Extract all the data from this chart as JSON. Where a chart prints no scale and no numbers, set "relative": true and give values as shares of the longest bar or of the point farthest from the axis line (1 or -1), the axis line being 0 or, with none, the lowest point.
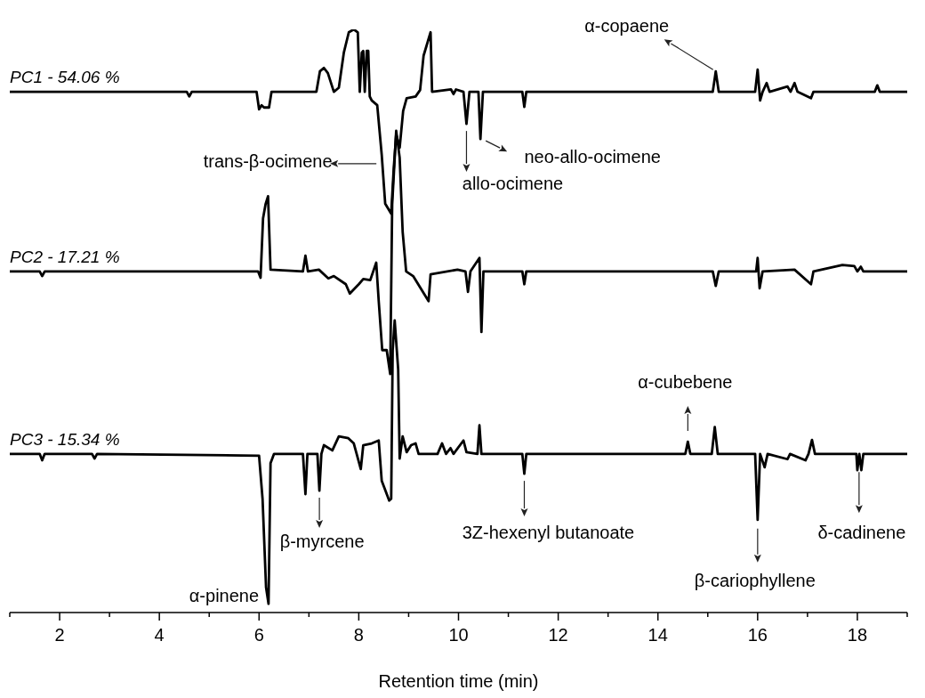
{
  "chart_data": {
    "type": "line",
    "relative": true,
    "xlabel": "Retention time (min)",
    "marker": "none",
    "line_style": "solid",
    "xlim": [
      1,
      19
    ],
    "xticks": [
      {
        "value": 1,
        "label": null
      },
      2,
      {
        "value": 3,
        "label": null
      },
      4,
      {
        "value": 5,
        "label": null
      },
      6,
      {
        "value": 7,
        "label": null
      },
      8,
      {
        "value": 9,
        "label": null
      },
      10,
      {
        "value": 11,
        "label": null
      },
      12,
      {
        "value": 13,
        "label": null
      },
      14,
      {
        "value": 15,
        "label": null
      },
      16,
      {
        "value": 17,
        "label": null
      },
      18,
      {
        "value": 19,
        "label": null
      }
    ],
    "series": [
      {
        "name": "PC1 - 54.06 %",
        "color": "#000000",
        "x": [
          1.0,
          4.55,
          4.6,
          4.65,
          5.95,
          6.0,
          6.05,
          6.1,
          6.2,
          6.25,
          7.15,
          7.22,
          7.3,
          7.38,
          7.5,
          7.6,
          7.7,
          7.8,
          7.9,
          7.98,
          8.02,
          8.06,
          8.09,
          8.12,
          8.16,
          8.19,
          8.22,
          8.26,
          8.37,
          8.46,
          8.53,
          8.65,
          8.7,
          8.75,
          8.82,
          8.89,
          8.96,
          9.14,
          9.23,
          9.3,
          9.44,
          9.47,
          9.85,
          9.9,
          9.95,
          10.1,
          10.16,
          10.22,
          10.4,
          10.44,
          10.49,
          11.28,
          11.32,
          11.36,
          15.1,
          15.16,
          15.22,
          15.95,
          16.0,
          16.05,
          16.1,
          16.18,
          16.24,
          16.6,
          16.66,
          16.74,
          16.8,
          17.07,
          17.12,
          18.35,
          18.4,
          18.45,
          19.0
        ],
        "values": [
          0.893,
          0.893,
          0.885,
          0.893,
          0.893,
          0.863,
          0.87,
          0.866,
          0.866,
          0.893,
          0.893,
          0.928,
          0.934,
          0.925,
          0.893,
          0.9,
          0.96,
          0.995,
          1.0,
          0.995,
          0.893,
          0.96,
          0.963,
          0.893,
          0.963,
          0.963,
          0.885,
          0.878,
          0.87,
          0.785,
          0.701,
          0.684,
          0.76,
          0.82,
          0.797,
          0.86,
          0.882,
          0.885,
          0.896,
          0.955,
          0.995,
          0.893,
          0.897,
          0.889,
          0.897,
          0.893,
          0.838,
          0.893,
          0.893,
          0.812,
          0.893,
          0.893,
          0.867,
          0.893,
          0.893,
          0.928,
          0.893,
          0.893,
          0.931,
          0.878,
          0.893,
          0.908,
          0.893,
          0.902,
          0.893,
          0.908,
          0.893,
          0.882,
          0.893,
          0.893,
          0.904,
          0.893,
          0.893
        ]
      },
      {
        "name": "PC2 - 17.21 %",
        "color": "#000000",
        "x": [
          1.0,
          1.6,
          1.65,
          1.7,
          5.98,
          6.03,
          6.08,
          6.13,
          6.18,
          6.23,
          6.88,
          6.93,
          6.98,
          7.2,
          7.39,
          7.5,
          7.74,
          7.82,
          8.0,
          8.09,
          8.23,
          8.35,
          8.4,
          8.47,
          8.56,
          8.63,
          8.67,
          8.75,
          8.82,
          8.88,
          8.95,
          9.09,
          9.4,
          9.44,
          9.98,
          10.14,
          10.19,
          10.24,
          10.42,
          10.46,
          10.5,
          11.28,
          11.32,
          11.36,
          15.1,
          15.16,
          15.22,
          15.97,
          16.0,
          16.04,
          16.1,
          16.74,
          17.07,
          17.12,
          17.7,
          17.94,
          18.0,
          18.07,
          18.12,
          19.0
        ],
        "values": [
          0.585,
          0.585,
          0.577,
          0.585,
          0.585,
          0.574,
          0.676,
          0.7,
          0.714,
          0.588,
          0.585,
          0.612,
          0.585,
          0.588,
          0.573,
          0.577,
          0.563,
          0.547,
          0.563,
          0.572,
          0.57,
          0.6,
          0.534,
          0.45,
          0.45,
          0.409,
          0.7,
          0.826,
          0.78,
          0.653,
          0.585,
          0.577,
          0.534,
          0.58,
          0.588,
          0.585,
          0.55,
          0.585,
          0.608,
          0.481,
          0.585,
          0.585,
          0.563,
          0.585,
          0.585,
          0.56,
          0.585,
          0.585,
          0.608,
          0.556,
          0.585,
          0.588,
          0.563,
          0.585,
          0.596,
          0.594,
          0.585,
          0.593,
          0.585,
          0.585
        ]
      },
      {
        "name": "PC3 - 15.34 %",
        "color": "#000000",
        "x": [
          1.0,
          1.6,
          1.65,
          1.7,
          2.65,
          2.7,
          2.75,
          6.0,
          6.07,
          6.14,
          6.19,
          6.23,
          6.3,
          6.88,
          6.93,
          6.97,
          7.17,
          7.21,
          7.25,
          7.3,
          7.47,
          7.6,
          7.79,
          7.9,
          8.04,
          8.09,
          8.26,
          8.4,
          8.46,
          8.61,
          8.65,
          8.68,
          8.72,
          8.79,
          8.82,
          8.88,
          8.96,
          9.05,
          9.14,
          9.2,
          9.58,
          9.67,
          9.75,
          9.84,
          9.9,
          10.1,
          10.16,
          10.38,
          10.42,
          10.46,
          11.28,
          11.32,
          11.36,
          14.55,
          14.6,
          14.65,
          15.08,
          15.14,
          15.2,
          15.95,
          16.0,
          16.05,
          16.14,
          16.2,
          16.6,
          16.65,
          16.96,
          17.02,
          17.09,
          17.15,
          17.98,
          18.0,
          18.04,
          18.08,
          18.12,
          19.0
        ],
        "values": [
          0.272,
          0.272,
          0.261,
          0.272,
          0.272,
          0.264,
          0.272,
          0.269,
          0.195,
          0.043,
          0.015,
          0.256,
          0.272,
          0.272,
          0.203,
          0.272,
          0.272,
          0.209,
          0.272,
          0.287,
          0.278,
          0.302,
          0.299,
          0.29,
          0.246,
          0.287,
          0.29,
          0.295,
          0.226,
          0.192,
          0.195,
          0.45,
          0.501,
          0.417,
          0.264,
          0.302,
          0.275,
          0.287,
          0.29,
          0.272,
          0.272,
          0.29,
          0.272,
          0.282,
          0.272,
          0.295,
          0.275,
          0.272,
          0.321,
          0.272,
          0.272,
          0.238,
          0.272,
          0.272,
          0.293,
          0.272,
          0.272,
          0.318,
          0.272,
          0.272,
          0.159,
          0.272,
          0.249,
          0.272,
          0.263,
          0.272,
          0.261,
          0.272,
          0.296,
          0.272,
          0.272,
          0.244,
          0.272,
          0.244,
          0.272,
          0.272
        ]
      }
    ],
    "annotations": [
      {
        "text": "α-copaene",
        "x": 15.16,
        "y": 0.928
      },
      {
        "text": "trans-β-ocimene",
        "x": 8.46,
        "y": 0.785
      },
      {
        "text": "allo-ocimene",
        "x": 10.16,
        "y": 0.838
      },
      {
        "text": "neo-allo-ocimene",
        "x": 10.44,
        "y": 0.812
      },
      {
        "text": "α-cubebene",
        "x": 14.6,
        "y": 0.293
      },
      {
        "text": "β-myrcene",
        "x": 7.21,
        "y": 0.209
      },
      {
        "text": "3Z-hexenyl butanoate",
        "x": 11.32,
        "y": 0.238
      },
      {
        "text": "α-pinene",
        "x": 6.19,
        "y": 0.015
      },
      {
        "text": "β-cariophyllene",
        "x": 16.0,
        "y": 0.159
      },
      {
        "text": "δ-cadinene",
        "x": 18.07,
        "y": 0.244
      }
    ]
  }
}
